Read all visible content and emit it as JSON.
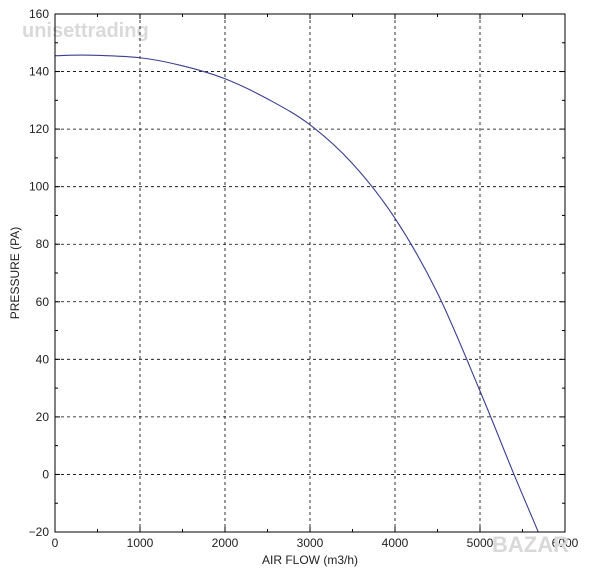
{
  "watermark_top": "unisettrading",
  "watermark_bottom": "BAZAR",
  "colors": {
    "curve": "#3a3f8f",
    "grid": "#000000",
    "axis": "#000000"
  },
  "chart_data": {
    "type": "line",
    "title": "",
    "xlabel": "AIR FLOW (m3/h)",
    "ylabel": "PRESSURE (PA)",
    "xlim": [
      0,
      6000
    ],
    "ylim": [
      -20,
      160
    ],
    "xticks": [
      0,
      1000,
      2000,
      3000,
      4000,
      5000,
      6000
    ],
    "yticks": [
      -20,
      0,
      20,
      40,
      60,
      80,
      100,
      120,
      140,
      160
    ],
    "grid": true,
    "series": [
      {
        "values_x": [
          0,
          400,
          1000,
          1500,
          2000,
          2500,
          3000,
          3500,
          4000,
          4500,
          5000,
          5400,
          5700
        ],
        "values_y": [
          145.5,
          145.7,
          144.8,
          142,
          137.5,
          130.5,
          121.5,
          108,
          89,
          63,
          29,
          0,
          -21
        ]
      }
    ]
  }
}
